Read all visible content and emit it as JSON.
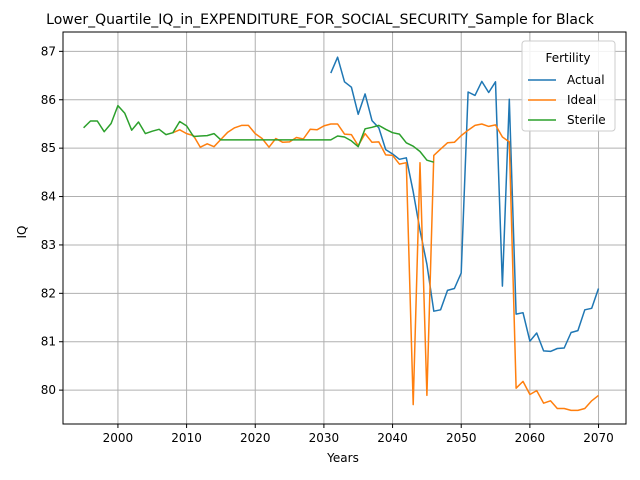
{
  "chart_data": {
    "type": "line",
    "title": "Lower_Quartile_IQ_in_EXPENDITURE_FOR_SOCIAL_SECURITY_Sample for Black",
    "xlabel": "Years",
    "ylabel": "IQ",
    "xlim": [
      1992,
      2074
    ],
    "ylim": [
      79.3,
      87.4
    ],
    "xticks": [
      2000,
      2010,
      2020,
      2030,
      2040,
      2050,
      2060,
      2070
    ],
    "yticks": [
      80,
      81,
      82,
      83,
      84,
      85,
      86,
      87
    ],
    "grid": true,
    "legend": {
      "title": "Fertility",
      "position": "top-right"
    },
    "series": [
      {
        "name": "Actual",
        "color": "#1f77b4",
        "points": [
          [
            2031,
            86.55
          ],
          [
            2032,
            86.88
          ],
          [
            2033,
            86.37
          ],
          [
            2034,
            86.26
          ],
          [
            2035,
            85.7
          ],
          [
            2036,
            86.12
          ],
          [
            2037,
            85.57
          ],
          [
            2038,
            85.42
          ],
          [
            2039,
            84.97
          ],
          [
            2040,
            84.88
          ],
          [
            2041,
            84.77
          ],
          [
            2042,
            84.8
          ],
          [
            2043,
            84.1
          ],
          [
            2044,
            83.3
          ],
          [
            2045,
            82.6
          ],
          [
            2046,
            81.63
          ],
          [
            2047,
            81.66
          ],
          [
            2048,
            82.06
          ],
          [
            2049,
            82.1
          ],
          [
            2050,
            82.42
          ],
          [
            2051,
            86.16
          ],
          [
            2052,
            86.09
          ],
          [
            2053,
            86.38
          ],
          [
            2054,
            86.15
          ],
          [
            2055,
            86.37
          ],
          [
            2056,
            82.15
          ],
          [
            2057,
            86.01
          ],
          [
            2058,
            81.57
          ],
          [
            2059,
            81.6
          ],
          [
            2060,
            81.01
          ],
          [
            2061,
            81.18
          ],
          [
            2062,
            80.81
          ],
          [
            2063,
            80.8
          ],
          [
            2064,
            80.86
          ],
          [
            2065,
            80.87
          ],
          [
            2066,
            81.19
          ],
          [
            2067,
            81.23
          ],
          [
            2068,
            81.66
          ],
          [
            2069,
            81.69
          ],
          [
            2070,
            82.1
          ]
        ]
      },
      {
        "name": "Ideal",
        "color": "#ff7f0e",
        "points": [
          [
            2008,
            85.32
          ],
          [
            2009,
            85.38
          ],
          [
            2010,
            85.3
          ],
          [
            2011,
            85.26
          ],
          [
            2012,
            85.02
          ],
          [
            2013,
            85.09
          ],
          [
            2014,
            85.03
          ],
          [
            2015,
            85.18
          ],
          [
            2016,
            85.33
          ],
          [
            2017,
            85.42
          ],
          [
            2018,
            85.47
          ],
          [
            2019,
            85.47
          ],
          [
            2020,
            85.3
          ],
          [
            2021,
            85.2
          ],
          [
            2022,
            85.02
          ],
          [
            2023,
            85.2
          ],
          [
            2024,
            85.12
          ],
          [
            2025,
            85.13
          ],
          [
            2026,
            85.22
          ],
          [
            2027,
            85.19
          ],
          [
            2028,
            85.39
          ],
          [
            2029,
            85.38
          ],
          [
            2030,
            85.46
          ],
          [
            2031,
            85.5
          ],
          [
            2032,
            85.5
          ],
          [
            2033,
            85.29
          ],
          [
            2034,
            85.28
          ],
          [
            2035,
            85.05
          ],
          [
            2036,
            85.3
          ],
          [
            2037,
            85.12
          ],
          [
            2038,
            85.13
          ],
          [
            2039,
            84.86
          ],
          [
            2040,
            84.85
          ],
          [
            2041,
            84.67
          ],
          [
            2042,
            84.7
          ],
          [
            2043,
            79.7
          ],
          [
            2044,
            84.7
          ],
          [
            2045,
            79.89
          ],
          [
            2046,
            84.85
          ],
          [
            2047,
            84.98
          ],
          [
            2048,
            85.11
          ],
          [
            2049,
            85.12
          ],
          [
            2050,
            85.26
          ],
          [
            2051,
            85.37
          ],
          [
            2052,
            85.47
          ],
          [
            2053,
            85.5
          ],
          [
            2054,
            85.45
          ],
          [
            2055,
            85.48
          ],
          [
            2056,
            85.23
          ],
          [
            2057,
            85.13
          ],
          [
            2058,
            80.04
          ],
          [
            2059,
            80.18
          ],
          [
            2060,
            79.91
          ],
          [
            2061,
            79.99
          ],
          [
            2062,
            79.73
          ],
          [
            2063,
            79.78
          ],
          [
            2064,
            79.62
          ],
          [
            2065,
            79.62
          ],
          [
            2066,
            79.58
          ],
          [
            2067,
            79.58
          ],
          [
            2068,
            79.62
          ],
          [
            2069,
            79.78
          ],
          [
            2070,
            79.89
          ]
        ]
      },
      {
        "name": "Sterile",
        "color": "#2ca02c",
        "points": [
          [
            1995,
            85.42
          ],
          [
            1996,
            85.56
          ],
          [
            1997,
            85.56
          ],
          [
            1998,
            85.34
          ],
          [
            1999,
            85.51
          ],
          [
            2000,
            85.88
          ],
          [
            2001,
            85.72
          ],
          [
            2002,
            85.37
          ],
          [
            2003,
            85.54
          ],
          [
            2004,
            85.3
          ],
          [
            2005,
            85.35
          ],
          [
            2006,
            85.39
          ],
          [
            2007,
            85.28
          ],
          [
            2008,
            85.32
          ],
          [
            2009,
            85.55
          ],
          [
            2010,
            85.46
          ],
          [
            2011,
            85.24
          ],
          [
            2012,
            85.25
          ],
          [
            2013,
            85.26
          ],
          [
            2014,
            85.3
          ],
          [
            2015,
            85.17
          ],
          [
            2016,
            85.17
          ],
          [
            2017,
            85.17
          ],
          [
            2018,
            85.17
          ],
          [
            2019,
            85.17
          ],
          [
            2020,
            85.17
          ],
          [
            2021,
            85.17
          ],
          [
            2022,
            85.17
          ],
          [
            2023,
            85.17
          ],
          [
            2024,
            85.17
          ],
          [
            2025,
            85.17
          ],
          [
            2026,
            85.17
          ],
          [
            2027,
            85.17
          ],
          [
            2028,
            85.17
          ],
          [
            2029,
            85.17
          ],
          [
            2030,
            85.17
          ],
          [
            2031,
            85.17
          ],
          [
            2032,
            85.25
          ],
          [
            2033,
            85.23
          ],
          [
            2034,
            85.15
          ],
          [
            2035,
            85.03
          ],
          [
            2036,
            85.4
          ],
          [
            2037,
            85.43
          ],
          [
            2038,
            85.47
          ],
          [
            2039,
            85.39
          ],
          [
            2040,
            85.32
          ],
          [
            2041,
            85.29
          ],
          [
            2042,
            85.11
          ],
          [
            2043,
            85.04
          ],
          [
            2044,
            84.93
          ],
          [
            2045,
            84.75
          ],
          [
            2046,
            84.71
          ]
        ]
      }
    ]
  }
}
